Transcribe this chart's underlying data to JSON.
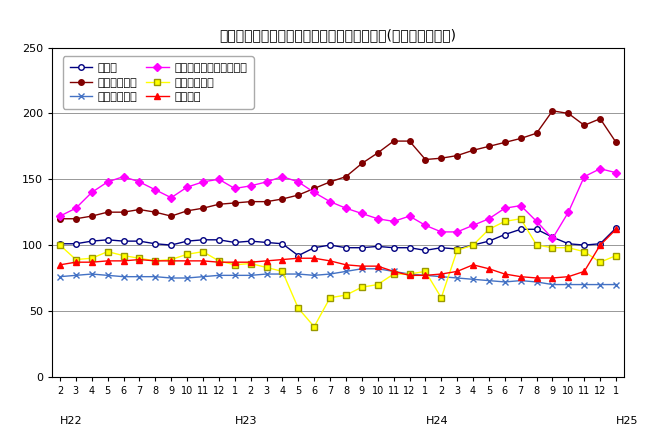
{
  "title": "三重県鉱工業生産及び主要業種別指数の推移(季節調整済指数)",
  "ylim": [
    0,
    250
  ],
  "yticks": [
    0,
    50,
    100,
    150,
    200,
    250
  ],
  "series": [
    {
      "name": "鉱工業",
      "color": "#000080",
      "marker": "o",
      "markersize": 4,
      "markerfacecolor": "white",
      "markeredgecolor": "#000080",
      "linewidth": 1.0,
      "values": [
        101,
        101,
        103,
        104,
        103,
        103,
        101,
        100,
        103,
        104,
        104,
        102,
        103,
        102,
        101,
        92,
        98,
        100,
        98,
        98,
        99,
        98,
        98,
        96,
        98,
        97,
        100,
        103,
        108,
        112,
        112,
        106,
        101,
        100,
        101,
        113
      ]
    },
    {
      "name": "一般機械工業",
      "color": "#800000",
      "marker": "o",
      "markersize": 4,
      "markerfacecolor": "#800000",
      "markeredgecolor": "#800000",
      "linewidth": 1.0,
      "values": [
        120,
        120,
        122,
        125,
        125,
        127,
        125,
        122,
        126,
        128,
        131,
        132,
        133,
        133,
        135,
        138,
        143,
        148,
        152,
        162,
        170,
        179,
        179,
        165,
        166,
        168,
        172,
        175,
        178,
        181,
        185,
        202,
        200,
        191,
        196,
        178
      ]
    },
    {
      "name": "電気機械工業",
      "color": "#4472C4",
      "marker": "x",
      "markersize": 5,
      "markerfacecolor": "#4472C4",
      "markeredgecolor": "#4472C4",
      "linewidth": 1.0,
      "values": [
        76,
        77,
        78,
        77,
        76,
        76,
        76,
        75,
        75,
        76,
        77,
        77,
        77,
        78,
        78,
        78,
        77,
        78,
        80,
        82,
        82,
        80,
        78,
        77,
        76,
        75,
        74,
        73,
        72,
        73,
        72,
        70,
        70,
        70,
        70,
        70
      ]
    },
    {
      "name": "電子部品・デバイス工業",
      "color": "#FF00FF",
      "marker": "D",
      "markersize": 4,
      "markerfacecolor": "#FF00FF",
      "markeredgecolor": "#FF00FF",
      "linewidth": 1.0,
      "values": [
        122,
        128,
        140,
        148,
        152,
        148,
        142,
        136,
        144,
        148,
        150,
        143,
        145,
        148,
        152,
        148,
        140,
        133,
        128,
        124,
        120,
        118,
        122,
        115,
        110,
        110,
        115,
        120,
        128,
        130,
        118,
        105,
        125,
        152,
        158,
        155
      ]
    },
    {
      "name": "輸送機械工業",
      "color": "#FFFF00",
      "marker": "s",
      "markersize": 5,
      "markerfacecolor": "#FFFF00",
      "markeredgecolor": "#999900",
      "linewidth": 1.0,
      "values": [
        100,
        89,
        90,
        95,
        92,
        90,
        88,
        89,
        93,
        95,
        88,
        85,
        86,
        83,
        80,
        52,
        38,
        60,
        62,
        68,
        70,
        78,
        78,
        80,
        60,
        96,
        100,
        112,
        118,
        120,
        100,
        98,
        98,
        95,
        87,
        92
      ]
    },
    {
      "name": "化学工業",
      "color": "#FF0000",
      "marker": "^",
      "markersize": 5,
      "markerfacecolor": "#FF0000",
      "markeredgecolor": "#FF0000",
      "linewidth": 1.0,
      "values": [
        85,
        87,
        87,
        88,
        88,
        89,
        88,
        88,
        88,
        88,
        87,
        87,
        87,
        88,
        89,
        90,
        90,
        88,
        85,
        84,
        84,
        80,
        77,
        77,
        78,
        80,
        85,
        82,
        78,
        76,
        75,
        75,
        76,
        80,
        100,
        112
      ]
    }
  ]
}
